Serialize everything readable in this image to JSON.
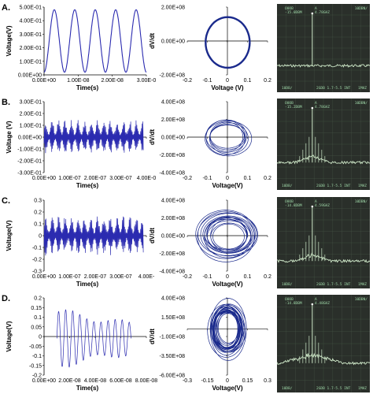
{
  "figure": {
    "panels": [
      {
        "label": "A.",
        "time_plot": {
          "ylabel": "Voltage(V)",
          "xlabel": "Time(s)",
          "y_ticks": [
            "5.00E-01",
            "4.00E-01",
            "3.00E-01",
            "2.00E-01",
            "1.00E-01",
            "0.00E+00"
          ],
          "x_ticks": [
            "0.00E+00",
            "1.00E-08",
            "2.00E-08",
            "3.00E-0"
          ]
        },
        "phase_plot": {
          "ylabel": "dV/dt",
          "xlabel": "Voltage (V)",
          "y_ticks": [
            "2.00E+08",
            "0.00E+00",
            "-2.00E+08"
          ],
          "x_ticks": [
            "-0.2",
            "-0.1",
            "0",
            "0.1",
            "0.2"
          ]
        },
        "spectrum": {
          "header_left": "ΟΘΟΒ\n-15.0DBM",
          "header_mid": "A\n4.78GHZ",
          "header_right": "10DBN/",
          "footer_left": "10DB/",
          "footer_mid": "2GDB 1.7-5.5 INT",
          "footer_right": "1MHZ"
        }
      },
      {
        "label": "B.",
        "time_plot": {
          "ylabel": "Voltage (V)",
          "xlabel": "Time(s)",
          "y_ticks": [
            "3.00E-01",
            "2.00E-01",
            "1.00E-01",
            "0.00E+00",
            "-1.00E-01",
            "-2.00E-01",
            "-3.00E-01"
          ],
          "x_ticks": [
            "0.00E+00",
            "1.00E-07",
            "2.00E-07",
            "3.00E-07",
            "4.00E-0"
          ]
        },
        "phase_plot": {
          "ylabel": "dV/dt",
          "xlabel": "Voltage(V)",
          "y_ticks": [
            "4.00E+08",
            "2.00E+08",
            "0.00E+00",
            "-2.00E+08",
            "-4.00E+08"
          ],
          "x_ticks": [
            "-0.2",
            "-0.1",
            "0",
            "0.1",
            "0.2"
          ]
        },
        "spectrum": {
          "header_left": "ΟΘΟΒ\n-15.2DBM",
          "header_mid": "A\n4.78GHZ",
          "header_right": "10DBN/",
          "footer_left": "10DB/",
          "footer_mid": "2GDB 1.7-5.5 INT",
          "footer_right": "1MHZ"
        }
      },
      {
        "label": "C.",
        "time_plot": {
          "ylabel": "Voltage(V)",
          "xlabel": "Time(s)",
          "y_ticks": [
            "0.3",
            "0.2",
            "0.1",
            "0",
            "-0.1",
            "-0.2",
            "-0.3"
          ],
          "x_ticks": [
            "0.00E+00",
            "1.00E-07",
            "2.00E-07",
            "3.00E-07",
            "4.00E-"
          ]
        },
        "phase_plot": {
          "ylabel": "dV/dt",
          "xlabel": "Voltage(V)",
          "y_ticks": [
            "4.00E+08",
            "2.00E+08",
            "0.00E+00",
            "-2.00E+08",
            "-4.00E+08"
          ],
          "x_ticks": [
            "-0.2",
            "-0.1",
            "0",
            "0.1",
            "0.2"
          ]
        },
        "spectrum": {
          "header_left": "ΟΘΟΒ\n-14.8DBM",
          "header_mid": "A\n4.59GHZ",
          "header_right": "10DBN/",
          "footer_left": "10DB/",
          "footer_mid": "2GDB 1.7-5.5 INT",
          "footer_right": "1MHZ"
        }
      },
      {
        "label": "D.",
        "time_plot": {
          "ylabel": "Voltage(V)",
          "xlabel": "Time(s)",
          "y_ticks": [
            "0.2",
            "0.15",
            "0.1",
            "0.05",
            "0",
            "-0.05",
            "-0.1",
            "-0.15",
            "-0.2"
          ],
          "x_ticks": [
            "0.00E+00",
            "2.00E-08",
            "4.00E-08",
            "6.00E-08",
            "8.00E-08"
          ]
        },
        "phase_plot": {
          "ylabel": "dV/dt",
          "xlabel": "Voltage(V)",
          "y_ticks": [
            "4.00E+08",
            "1.50E+08",
            "-1.00E+08",
            "-3.50E+08",
            "-6.00E+08"
          ],
          "x_ticks": [
            "-0.3",
            "-0.15",
            "0",
            "0.15",
            "0.3"
          ]
        },
        "spectrum": {
          "header_left": "ΟΘΟΒ\n-14.8DBM",
          "header_mid": "A\n4.48GHZ",
          "header_right": "10DBN/",
          "footer_left": "10DB/",
          "footer_mid": "2GDB 1.7-5.5 INT",
          "footer_right": "1MHZ"
        }
      }
    ]
  },
  "chart_data": [
    {
      "type": "line",
      "panel": "A",
      "kind": "time-series",
      "description_source": "shown",
      "xlim": [
        0,
        3e-08
      ],
      "ylim": [
        0,
        0.5
      ],
      "periods": 5,
      "amplitude_center": 0.25,
      "amplitude": 0.23,
      "style": "sine",
      "color": "#2b2bb0"
    },
    {
      "type": "scatter",
      "panel": "A",
      "kind": "phase-portrait",
      "xlim": [
        -0.2,
        0.2
      ],
      "ylim": [
        -200000000.0,
        200000000.0
      ],
      "loops": 1,
      "rx": 0.11,
      "ry": 150000000.0,
      "color": "#1a2a8c"
    },
    {
      "type": "line",
      "panel": "B",
      "kind": "time-series",
      "xlim": [
        0,
        4e-07
      ],
      "ylim": [
        -0.3,
        0.3
      ],
      "amplitude": 0.15,
      "style": "chaotic",
      "color": "#2b2bb0"
    },
    {
      "type": "scatter",
      "panel": "B",
      "kind": "phase-portrait",
      "xlim": [
        -0.2,
        0.2
      ],
      "ylim": [
        -400000000.0,
        400000000.0
      ],
      "loops": 7,
      "rx": 0.14,
      "ry": 260000000.0,
      "color": "#1a2a8c"
    },
    {
      "type": "line",
      "panel": "C",
      "kind": "time-series",
      "xlim": [
        0,
        4e-07
      ],
      "ylim": [
        -0.3,
        0.3
      ],
      "amplitude": 0.17,
      "style": "chaotic",
      "color": "#2b2bb0"
    },
    {
      "type": "scatter",
      "panel": "C",
      "kind": "phase-portrait",
      "xlim": [
        -0.2,
        0.2
      ],
      "ylim": [
        -400000000.0,
        400000000.0
      ],
      "loops": 14,
      "rx": 0.15,
      "ry": 280000000.0,
      "color": "#1a2a8c"
    },
    {
      "type": "line",
      "panel": "D",
      "kind": "time-series",
      "xlim": [
        0,
        8e-08
      ],
      "ylim": [
        -0.2,
        0.2
      ],
      "start": 1e-08,
      "end": 6.8e-08,
      "amplitude": 0.16,
      "style": "decaying",
      "color": "#2b2bb0"
    },
    {
      "type": "scatter",
      "panel": "D",
      "kind": "phase-portrait",
      "xlim": [
        -0.3,
        0.3
      ],
      "ylim": [
        -600000000.0,
        400000000.0
      ],
      "loops": 22,
      "rx": 0.15,
      "ry": 390000000.0,
      "color": "#1a2a8c"
    }
  ],
  "colors": {
    "trace": "#2b2bb0",
    "phase": "#1a2a8c",
    "scope_bg": "#2a2f2a",
    "scope_trace": "#cfe9c9",
    "scope_grid": "#4c5a4c"
  }
}
